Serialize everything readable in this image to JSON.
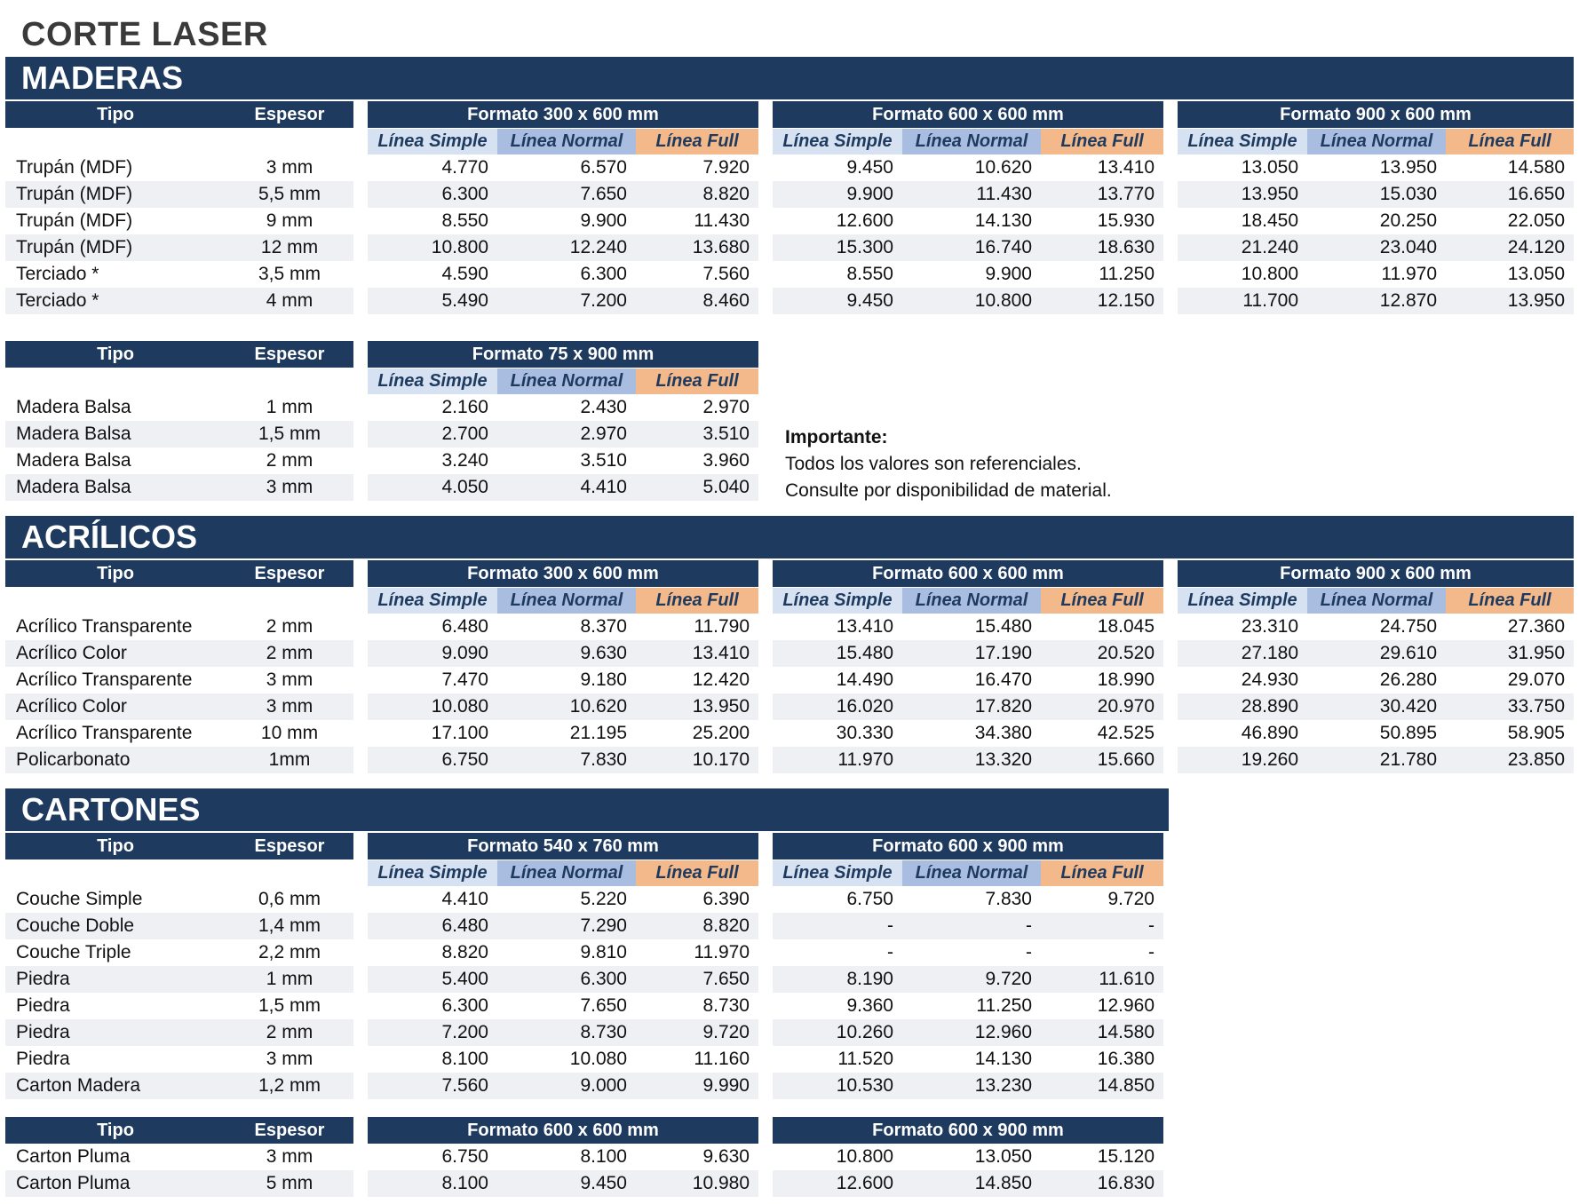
{
  "title": "CORTE LASER",
  "labels": {
    "tipo": "Tipo",
    "espesor": "Espesor",
    "simple": "Línea Simple",
    "normal": "Línea Normal",
    "full": "Línea Full"
  },
  "colors": {
    "header": "#1e3a5f",
    "simple": "#d6e1f1",
    "normal": "#a9bde0",
    "full": "#f4b98a",
    "stripe": "#eef0f4"
  },
  "note": {
    "heading": "Importante:",
    "line1": "Todos los valores son referenciales.",
    "line2": "Consulte por disponibilidad de material."
  },
  "sections": [
    {
      "id": "maderas",
      "name": "MADERAS",
      "groups": [
        {
          "subheaders": true,
          "formats": [
            "Formato 300 x 600 mm",
            "Formato 600 x 600 mm",
            "Formato 900 x 600 mm"
          ],
          "rows": [
            {
              "tipo": "Trupán (MDF)",
              "espesor": "3 mm",
              "values": [
                [
                  "4.770",
                  "6.570",
                  "7.920"
                ],
                [
                  "9.450",
                  "10.620",
                  "13.410"
                ],
                [
                  "13.050",
                  "13.950",
                  "14.580"
                ]
              ]
            },
            {
              "tipo": "Trupán (MDF)",
              "espesor": "5,5 mm",
              "values": [
                [
                  "6.300",
                  "7.650",
                  "8.820"
                ],
                [
                  "9.900",
                  "11.430",
                  "13.770"
                ],
                [
                  "13.950",
                  "15.030",
                  "16.650"
                ]
              ]
            },
            {
              "tipo": "Trupán (MDF)",
              "espesor": "9 mm",
              "values": [
                [
                  "8.550",
                  "9.900",
                  "11.430"
                ],
                [
                  "12.600",
                  "14.130",
                  "15.930"
                ],
                [
                  "18.450",
                  "20.250",
                  "22.050"
                ]
              ]
            },
            {
              "tipo": "Trupán (MDF)",
              "espesor": "12 mm",
              "values": [
                [
                  "10.800",
                  "12.240",
                  "13.680"
                ],
                [
                  "15.300",
                  "16.740",
                  "18.630"
                ],
                [
                  "21.240",
                  "23.040",
                  "24.120"
                ]
              ]
            },
            {
              "tipo": "Terciado *",
              "espesor": "3,5 mm",
              "values": [
                [
                  "4.590",
                  "6.300",
                  "7.560"
                ],
                [
                  "8.550",
                  "9.900",
                  "11.250"
                ],
                [
                  "10.800",
                  "11.970",
                  "13.050"
                ]
              ]
            },
            {
              "tipo": "Terciado *",
              "espesor": "4 mm",
              "values": [
                [
                  "5.490",
                  "7.200",
                  "8.460"
                ],
                [
                  "9.450",
                  "10.800",
                  "12.150"
                ],
                [
                  "11.700",
                  "12.870",
                  "13.950"
                ]
              ]
            }
          ]
        },
        {
          "subheaders": true,
          "formats": [
            "Formato 75 x 900 mm"
          ],
          "rows": [
            {
              "tipo": "Madera Balsa",
              "espesor": "1 mm",
              "values": [
                [
                  "2.160",
                  "2.430",
                  "2.970"
                ]
              ]
            },
            {
              "tipo": "Madera Balsa",
              "espesor": "1,5 mm",
              "values": [
                [
                  "2.700",
                  "2.970",
                  "3.510"
                ]
              ]
            },
            {
              "tipo": "Madera Balsa",
              "espesor": "2 mm",
              "values": [
                [
                  "3.240",
                  "3.510",
                  "3.960"
                ]
              ]
            },
            {
              "tipo": "Madera Balsa",
              "espesor": "3 mm",
              "values": [
                [
                  "4.050",
                  "4.410",
                  "5.040"
                ]
              ]
            }
          ]
        }
      ]
    },
    {
      "id": "acrilicos",
      "name": "ACRÍLICOS",
      "groups": [
        {
          "subheaders": true,
          "formats": [
            "Formato 300 x 600 mm",
            "Formato 600 x 600 mm",
            "Formato 900 x 600 mm"
          ],
          "rows": [
            {
              "tipo": "Acrílico Transparente",
              "espesor": "2 mm",
              "values": [
                [
                  "6.480",
                  "8.370",
                  "11.790"
                ],
                [
                  "13.410",
                  "15.480",
                  "18.045"
                ],
                [
                  "23.310",
                  "24.750",
                  "27.360"
                ]
              ]
            },
            {
              "tipo": "Acrílico Color",
              "espesor": "2 mm",
              "values": [
                [
                  "9.090",
                  "9.630",
                  "13.410"
                ],
                [
                  "15.480",
                  "17.190",
                  "20.520"
                ],
                [
                  "27.180",
                  "29.610",
                  "31.950"
                ]
              ]
            },
            {
              "tipo": "Acrílico Transparente",
              "espesor": "3 mm",
              "values": [
                [
                  "7.470",
                  "9.180",
                  "12.420"
                ],
                [
                  "14.490",
                  "16.470",
                  "18.990"
                ],
                [
                  "24.930",
                  "26.280",
                  "29.070"
                ]
              ]
            },
            {
              "tipo": "Acrílico Color",
              "espesor": "3 mm",
              "values": [
                [
                  "10.080",
                  "10.620",
                  "13.950"
                ],
                [
                  "16.020",
                  "17.820",
                  "20.970"
                ],
                [
                  "28.890",
                  "30.420",
                  "33.750"
                ]
              ]
            },
            {
              "tipo": "Acrílico Transparente",
              "espesor": "10 mm",
              "values": [
                [
                  "17.100",
                  "21.195",
                  "25.200"
                ],
                [
                  "30.330",
                  "34.380",
                  "42.525"
                ],
                [
                  "46.890",
                  "50.895",
                  "58.905"
                ]
              ]
            },
            {
              "tipo": "Policarbonato",
              "espesor": "1mm",
              "values": [
                [
                  "6.750",
                  "7.830",
                  "10.170"
                ],
                [
                  "11.970",
                  "13.320",
                  "15.660"
                ],
                [
                  "19.260",
                  "21.780",
                  "23.850"
                ]
              ]
            }
          ]
        }
      ]
    },
    {
      "id": "cartones",
      "name": "CARTONES",
      "groups": [
        {
          "subheaders": true,
          "formats": [
            "Formato 540 x 760 mm",
            "Formato 600 x 900 mm"
          ],
          "rows": [
            {
              "tipo": "Couche Simple",
              "espesor": "0,6 mm",
              "values": [
                [
                  "4.410",
                  "5.220",
                  "6.390"
                ],
                [
                  "6.750",
                  "7.830",
                  "9.720"
                ]
              ]
            },
            {
              "tipo": "Couche Doble",
              "espesor": "1,4 mm",
              "values": [
                [
                  "6.480",
                  "7.290",
                  "8.820"
                ],
                [
                  "-",
                  "-",
                  "-"
                ]
              ]
            },
            {
              "tipo": "Couche Triple",
              "espesor": "2,2 mm",
              "values": [
                [
                  "8.820",
                  "9.810",
                  "11.970"
                ],
                [
                  "-",
                  "-",
                  "-"
                ]
              ]
            },
            {
              "tipo": "Piedra",
              "espesor": "1 mm",
              "values": [
                [
                  "5.400",
                  "6.300",
                  "7.650"
                ],
                [
                  "8.190",
                  "9.720",
                  "11.610"
                ]
              ]
            },
            {
              "tipo": "Piedra",
              "espesor": "1,5 mm",
              "values": [
                [
                  "6.300",
                  "7.650",
                  "8.730"
                ],
                [
                  "9.360",
                  "11.250",
                  "12.960"
                ]
              ]
            },
            {
              "tipo": "Piedra",
              "espesor": "2 mm",
              "values": [
                [
                  "7.200",
                  "8.730",
                  "9.720"
                ],
                [
                  "10.260",
                  "12.960",
                  "14.580"
                ]
              ]
            },
            {
              "tipo": "Piedra",
              "espesor": "3 mm",
              "values": [
                [
                  "8.100",
                  "10.080",
                  "11.160"
                ],
                [
                  "11.520",
                  "14.130",
                  "16.380"
                ]
              ]
            },
            {
              "tipo": "Carton Madera",
              "espesor": "1,2 mm",
              "values": [
                [
                  "7.560",
                  "9.000",
                  "9.990"
                ],
                [
                  "10.530",
                  "13.230",
                  "14.850"
                ]
              ]
            }
          ]
        },
        {
          "subheaders": false,
          "formats": [
            "Formato 600 x 600 mm",
            "Formato 600 x 900 mm"
          ],
          "rows": [
            {
              "tipo": "Carton Pluma",
              "espesor": "3 mm",
              "values": [
                [
                  "6.750",
                  "8.100",
                  "9.630"
                ],
                [
                  "10.800",
                  "13.050",
                  "15.120"
                ]
              ]
            },
            {
              "tipo": "Carton Pluma",
              "espesor": "5 mm",
              "values": [
                [
                  "8.100",
                  "9.450",
                  "10.980"
                ],
                [
                  "12.600",
                  "14.850",
                  "16.830"
                ]
              ]
            }
          ]
        }
      ]
    }
  ]
}
